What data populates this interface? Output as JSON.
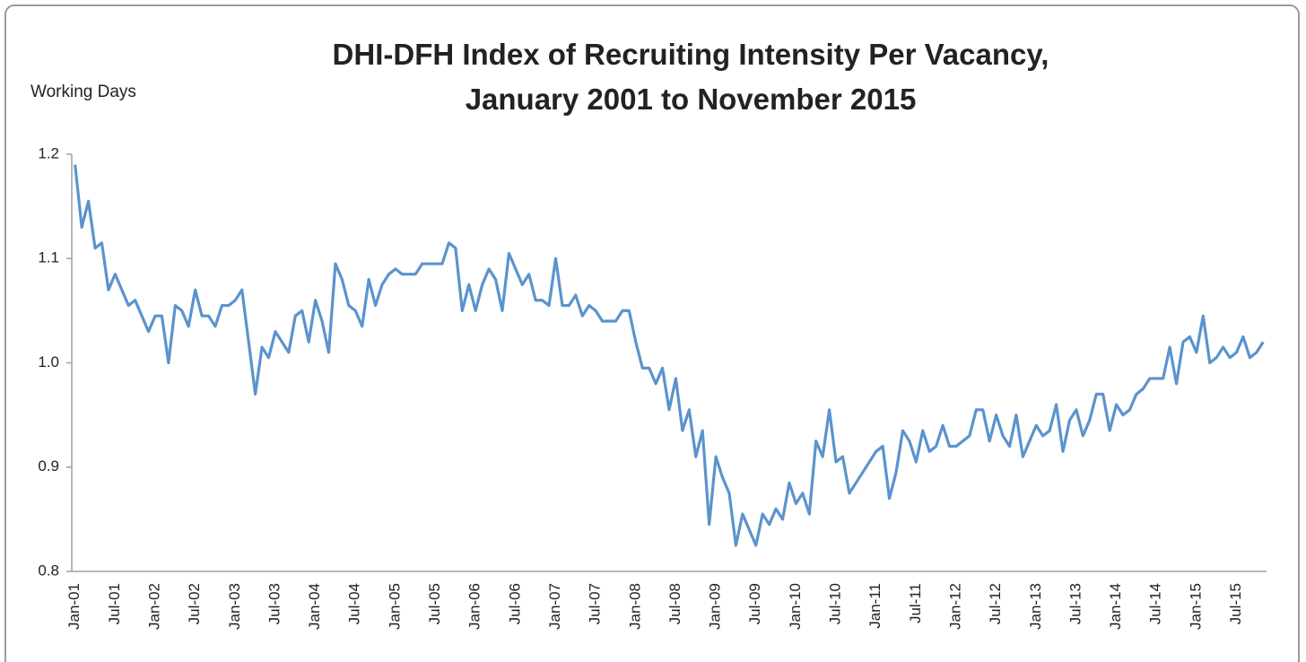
{
  "chart_data": {
    "type": "line",
    "title": [
      "DHI-DFH Index of Recruiting Intensity Per Vacancy,",
      "January 2001 to November 2015"
    ],
    "y_label": "Working Days",
    "categories": [
      "Jan-01",
      null,
      null,
      null,
      null,
      null,
      "Jul-01",
      null,
      null,
      null,
      null,
      null,
      "Jan-02",
      null,
      null,
      null,
      null,
      null,
      "Jul-02",
      null,
      null,
      null,
      null,
      null,
      "Jan-03",
      null,
      null,
      null,
      null,
      null,
      "Jul-03",
      null,
      null,
      null,
      null,
      null,
      "Jan-04",
      null,
      null,
      null,
      null,
      null,
      "Jul-04",
      null,
      null,
      null,
      null,
      null,
      "Jan-05",
      null,
      null,
      null,
      null,
      null,
      "Jul-05",
      null,
      null,
      null,
      null,
      null,
      "Jan-06",
      null,
      null,
      null,
      null,
      null,
      "Jul-06",
      null,
      null,
      null,
      null,
      null,
      "Jan-07",
      null,
      null,
      null,
      null,
      null,
      "Jul-07",
      null,
      null,
      null,
      null,
      null,
      "Jan-08",
      null,
      null,
      null,
      null,
      null,
      "Jul-08",
      null,
      null,
      null,
      null,
      null,
      "Jan-09",
      null,
      null,
      null,
      null,
      null,
      "Jul-09",
      null,
      null,
      null,
      null,
      null,
      "Jan-10",
      null,
      null,
      null,
      null,
      null,
      "Jul-10",
      null,
      null,
      null,
      null,
      null,
      "Jan-11",
      null,
      null,
      null,
      null,
      null,
      "Jul-11",
      null,
      null,
      null,
      null,
      null,
      "Jan-12",
      null,
      null,
      null,
      null,
      null,
      "Jul-12",
      null,
      null,
      null,
      null,
      null,
      "Jan-13",
      null,
      null,
      null,
      null,
      null,
      "Jul-13",
      null,
      null,
      null,
      null,
      null,
      "Jan-14",
      null,
      null,
      null,
      null,
      null,
      "Jul-14",
      null,
      null,
      null,
      null,
      null,
      "Jan-15",
      null,
      null,
      null,
      null,
      null,
      "Jul-15",
      null,
      null,
      null,
      null
    ],
    "series": [
      {
        "name": "Recruiting Intensity Per Vacancy",
        "color": "#5b93cd",
        "values": [
          1.19,
          1.13,
          1.155,
          1.11,
          1.115,
          1.07,
          1.085,
          1.07,
          1.055,
          1.06,
          1.045,
          1.03,
          1.045,
          1.045,
          1.0,
          1.055,
          1.05,
          1.035,
          1.07,
          1.045,
          1.045,
          1.035,
          1.055,
          1.055,
          1.06,
          1.07,
          1.02,
          0.97,
          1.015,
          1.005,
          1.03,
          1.02,
          1.01,
          1.045,
          1.05,
          1.02,
          1.06,
          1.04,
          1.01,
          1.095,
          1.08,
          1.055,
          1.05,
          1.035,
          1.08,
          1.055,
          1.075,
          1.085,
          1.09,
          1.085,
          1.085,
          1.085,
          1.095,
          1.095,
          1.095,
          1.095,
          1.115,
          1.11,
          1.05,
          1.075,
          1.05,
          1.075,
          1.09,
          1.08,
          1.05,
          1.105,
          1.09,
          1.075,
          1.085,
          1.06,
          1.06,
          1.055,
          1.1,
          1.055,
          1.055,
          1.065,
          1.045,
          1.055,
          1.05,
          1.04,
          1.04,
          1.04,
          1.05,
          1.05,
          1.02,
          0.995,
          0.995,
          0.98,
          0.995,
          0.955,
          0.985,
          0.935,
          0.955,
          0.91,
          0.935,
          0.845,
          0.91,
          0.89,
          0.875,
          0.825,
          0.855,
          0.84,
          0.825,
          0.855,
          0.845,
          0.86,
          0.85,
          0.885,
          0.865,
          0.875,
          0.855,
          0.925,
          0.91,
          0.955,
          0.905,
          0.91,
          0.875,
          0.885,
          0.895,
          0.905,
          0.915,
          0.92,
          0.87,
          0.895,
          0.935,
          0.925,
          0.905,
          0.935,
          0.915,
          0.92,
          0.94,
          0.92,
          0.92,
          0.925,
          0.93,
          0.955,
          0.955,
          0.925,
          0.95,
          0.93,
          0.92,
          0.95,
          0.91,
          0.925,
          0.94,
          0.93,
          0.935,
          0.96,
          0.915,
          0.945,
          0.955,
          0.93,
          0.945,
          0.97,
          0.97,
          0.935,
          0.96,
          0.95,
          0.955,
          0.97,
          0.975,
          0.985,
          0.985,
          0.985,
          1.015,
          0.98,
          1.02,
          1.025,
          1.01,
          1.045,
          1.0,
          1.005,
          1.015,
          1.005,
          1.01,
          1.025,
          1.005,
          1.01,
          1.02
        ]
      }
    ],
    "ylim": [
      0.8,
      1.2
    ],
    "yticks": [
      0.8,
      0.9,
      {
        "value": 1,
        "label": "1.0"
      },
      1.1,
      1.2
    ],
    "grid": false
  }
}
